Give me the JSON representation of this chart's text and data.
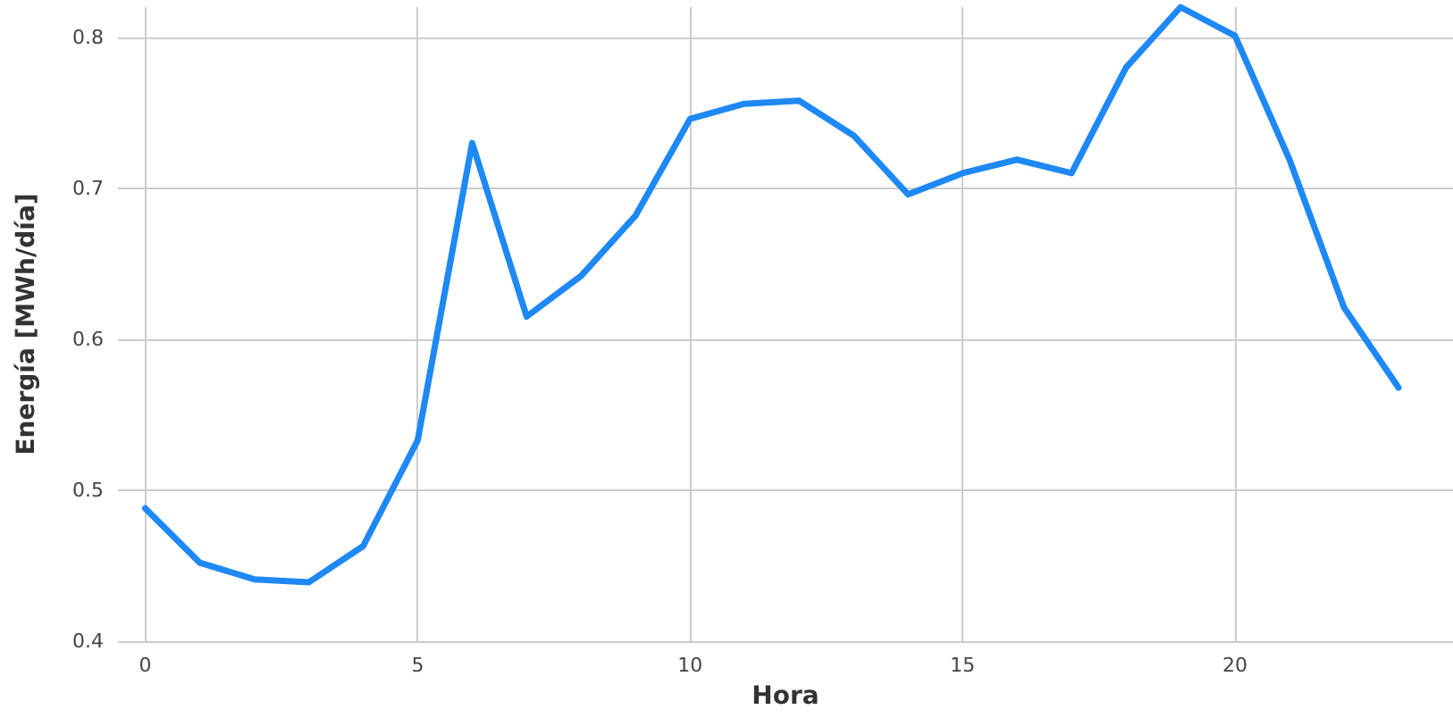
{
  "chart_data": {
    "type": "line",
    "xlabel": "Hora",
    "ylabel": "Energía [MWh/día]",
    "x": [
      0,
      1,
      2,
      3,
      4,
      5,
      6,
      7,
      8,
      9,
      10,
      11,
      12,
      13,
      14,
      15,
      16,
      17,
      18,
      19,
      20,
      21,
      22,
      23
    ],
    "series": [
      {
        "color": "#1e88f5",
        "values": [
          0.488,
          0.452,
          0.441,
          0.439,
          0.463,
          0.533,
          0.73,
          0.615,
          0.642,
          0.682,
          0.746,
          0.756,
          0.758,
          0.735,
          0.696,
          0.71,
          0.719,
          0.71,
          0.78,
          0.82,
          0.801,
          0.719,
          0.621,
          0.568
        ]
      }
    ],
    "xlim": [
      -0.5,
      24
    ],
    "xticks": [
      0,
      5,
      10,
      15,
      20
    ],
    "ylim": [
      0.4,
      0.82
    ],
    "yticks": [
      0.4,
      0.5,
      0.6,
      0.7,
      0.8
    ],
    "grid": true,
    "marker": "none",
    "line_style": "solid"
  }
}
